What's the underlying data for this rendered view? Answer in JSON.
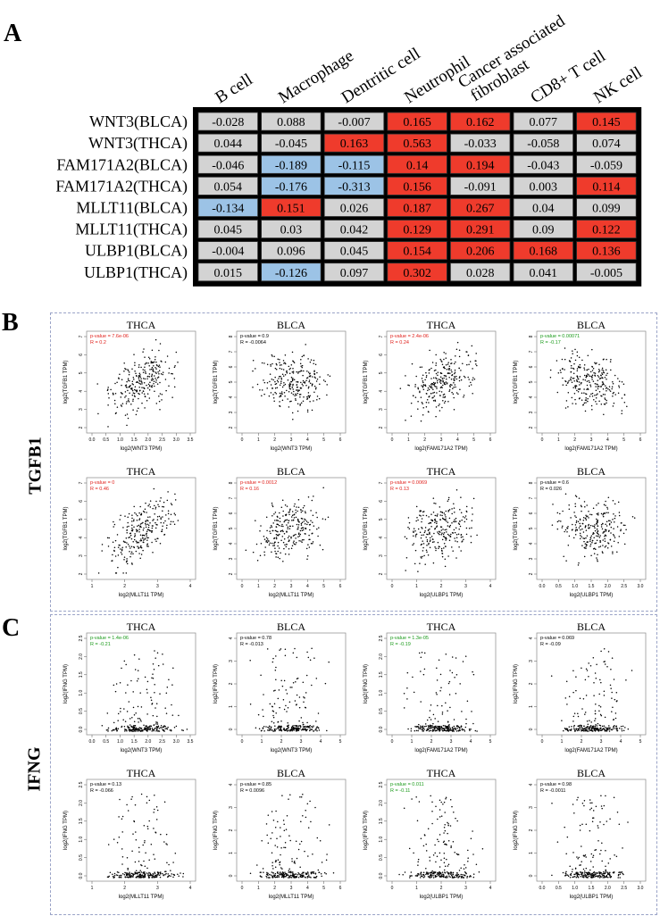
{
  "panels": {
    "a": "A",
    "b": "B",
    "c": "C"
  },
  "heatmap": {
    "columns": [
      "B cell",
      "Macrophage",
      "Dentritic cell",
      "Neutrophil",
      "Cancer associated\nfibroblast",
      "CD8+ T cell",
      "NK cell"
    ],
    "rows": [
      {
        "label": "WNT3(BLCA)",
        "values": [
          "-0.028",
          "0.088",
          "-0.007",
          "0.165",
          "0.162",
          "0.077",
          "0.145"
        ],
        "colors": [
          "g",
          "g",
          "g",
          "r",
          "r",
          "g",
          "r"
        ]
      },
      {
        "label": "WNT3(THCA)",
        "values": [
          "0.044",
          "-0.045",
          "0.163",
          "0.563",
          "-0.033",
          "-0.058",
          "0.074"
        ],
        "colors": [
          "g",
          "g",
          "r",
          "r",
          "g",
          "g",
          "g"
        ]
      },
      {
        "label": "FAM171A2(BLCA)",
        "values": [
          "-0.046",
          "-0.189",
          "-0.115",
          "0.14",
          "0.194",
          "-0.043",
          "-0.059"
        ],
        "colors": [
          "g",
          "b",
          "b",
          "r",
          "r",
          "g",
          "g"
        ]
      },
      {
        "label": "FAM171A2(THCA)",
        "values": [
          "0.054",
          "-0.176",
          "-0.313",
          "0.156",
          "-0.091",
          "0.003",
          "0.114"
        ],
        "colors": [
          "g",
          "b",
          "b",
          "r",
          "g",
          "g",
          "r"
        ]
      },
      {
        "label": "MLLT11(BLCA)",
        "values": [
          "-0.134",
          "0.151",
          "0.026",
          "0.187",
          "0.267",
          "0.04",
          "0.099"
        ],
        "colors": [
          "b",
          "r",
          "g",
          "r",
          "r",
          "g",
          "g"
        ]
      },
      {
        "label": "MLLT11(THCA)",
        "values": [
          "0.045",
          "0.03",
          "0.042",
          "0.129",
          "0.291",
          "0.09",
          "0.122"
        ],
        "colors": [
          "g",
          "g",
          "g",
          "r",
          "r",
          "g",
          "r"
        ]
      },
      {
        "label": "ULBP1(BLCA)",
        "values": [
          "-0.004",
          "0.096",
          "0.045",
          "0.154",
          "0.206",
          "0.168",
          "0.136"
        ],
        "colors": [
          "g",
          "g",
          "g",
          "r",
          "r",
          "r",
          "r"
        ]
      },
      {
        "label": "ULBP1(THCA)",
        "values": [
          "0.015",
          "-0.126",
          "0.097",
          "0.302",
          "0.028",
          "0.041",
          "-0.005"
        ],
        "colors": [
          "g",
          "b",
          "g",
          "r",
          "g",
          "g",
          "g"
        ]
      }
    ],
    "palette": {
      "g": "#d3d3d3",
      "r": "#ef3b2c",
      "b": "#9cc3e6"
    }
  },
  "sections": [
    {
      "label": "TGFB1",
      "yaxis": "log2(TGFB1 TPM)",
      "plots": [
        {
          "title": "THCA",
          "xlabel": "log2(WNT3 TPM)",
          "p": "p-value = 7.6e-06",
          "r": "R = 0.2",
          "color": "#e0201b",
          "xticks": [
            "0.0",
            "0.5",
            "1.0",
            "1.5",
            "2.0",
            "2.5",
            "3.0",
            "3.5"
          ],
          "yticks": [
            "2",
            "3",
            "4",
            "5",
            "6",
            "7"
          ],
          "trend": 0.45,
          "seed": 11
        },
        {
          "title": "BLCA",
          "xlabel": "log2(WNT3 TPM)",
          "p": "p-value = 0.9",
          "r": "R = -0.0064",
          "color": "#000000",
          "xticks": [
            "0",
            "1",
            "2",
            "3",
            "4",
            "5",
            "6"
          ],
          "yticks": [
            "2",
            "3",
            "4",
            "5",
            "6",
            "7",
            "8"
          ],
          "trend": 0.0,
          "seed": 12
        },
        {
          "title": "THCA",
          "xlabel": "log2(FAM171A2 TPM)",
          "p": "p-value = 2.4e-06",
          "r": "R = 0.24",
          "color": "#e0201b",
          "xticks": [
            "0",
            "1",
            "2",
            "3",
            "4",
            "5",
            "6"
          ],
          "yticks": [
            "2",
            "3",
            "4",
            "5",
            "6",
            "7"
          ],
          "trend": 0.5,
          "seed": 13
        },
        {
          "title": "BLCA",
          "xlabel": "log2(FAM171A2 TPM)",
          "p": "p-value = 0.00071",
          "r": "R = -0.17",
          "color": "#1a9a1a",
          "xticks": [
            "0",
            "1",
            "2",
            "3",
            "4",
            "5",
            "6"
          ],
          "yticks": [
            "2",
            "3",
            "4",
            "5",
            "6",
            "7",
            "8"
          ],
          "trend": -0.4,
          "seed": 14
        },
        {
          "title": "THCA",
          "xlabel": "log2(MLLT11 TPM)",
          "p": "p-value = 0",
          "r": "R = 0.46",
          "color": "#e0201b",
          "xticks": [
            "1",
            "2",
            "3",
            "4"
          ],
          "yticks": [
            "2",
            "3",
            "4",
            "5",
            "6",
            "7"
          ],
          "trend": 0.8,
          "seed": 15
        },
        {
          "title": "BLCA",
          "xlabel": "log2(MLLT11 TPM)",
          "p": "p-value = 0.0012",
          "r": "R = 0.16",
          "color": "#e0201b",
          "xticks": [
            "0",
            "1",
            "2",
            "3",
            "4",
            "5",
            "6"
          ],
          "yticks": [
            "2",
            "3",
            "4",
            "5",
            "6",
            "7",
            "8"
          ],
          "trend": 0.35,
          "seed": 16
        },
        {
          "title": "THCA",
          "xlabel": "log2(ULBP1 TPM)",
          "p": "p-value = 0.0069",
          "r": "R = 0.13",
          "color": "#e0201b",
          "xticks": [
            "0",
            "1",
            "2",
            "3",
            "4"
          ],
          "yticks": [
            "2",
            "3",
            "4",
            "5",
            "6",
            "7"
          ],
          "trend": 0.25,
          "seed": 17
        },
        {
          "title": "BLCA",
          "xlabel": "log2(ULBP1 TPM)",
          "p": "p-value = 0.6",
          "r": "R = 0.026",
          "color": "#000000",
          "xticks": [
            "0.0",
            "0.5",
            "1.0",
            "1.5",
            "2.0",
            "2.5",
            "3.0"
          ],
          "yticks": [
            "2",
            "3",
            "4",
            "5",
            "6",
            "7",
            "8"
          ],
          "trend": 0.0,
          "seed": 18
        }
      ]
    },
    {
      "label": "IFNG",
      "yaxis": "log2(IFNG TPM)",
      "plots": [
        {
          "title": "THCA",
          "xlabel": "log2(WNT3 TPM)",
          "p": "p-value = 1.4e-06",
          "r": "R = -0.21",
          "color": "#1a9a1a",
          "xticks": [
            "0.0",
            "0.5",
            "1.0",
            "1.5",
            "2.0",
            "2.5",
            "3.0",
            "3.5"
          ],
          "yticks": [
            "0.0",
            "0.5",
            "1.0",
            "1.5",
            "2.0",
            "2.5"
          ],
          "trend": -0.3,
          "seed": 21
        },
        {
          "title": "BLCA",
          "xlabel": "log2(WNT3 TPM)",
          "p": "p-value = 0.78",
          "r": "R = -0.013",
          "color": "#000000",
          "xticks": [
            "0",
            "1",
            "2",
            "3",
            "4",
            "5"
          ],
          "yticks": [
            "0",
            "1",
            "2",
            "3",
            "4"
          ],
          "trend": 0.0,
          "seed": 22
        },
        {
          "title": "THCA",
          "xlabel": "log2(FAM171A2 TPM)",
          "p": "p-value = 1.3e-05",
          "r": "R = -0.19",
          "color": "#1a9a1a",
          "xticks": [
            "0",
            "1",
            "2",
            "3",
            "4",
            "5"
          ],
          "yticks": [
            "0.0",
            "0.5",
            "1.0",
            "1.5",
            "2.0",
            "2.5"
          ],
          "trend": -0.3,
          "seed": 23
        },
        {
          "title": "BLCA",
          "xlabel": "log2(FAM171A2 TPM)",
          "p": "p-value = 0.069",
          "r": "R = -0.09",
          "color": "#000000",
          "xticks": [
            "0",
            "1",
            "2",
            "3",
            "4",
            "5"
          ],
          "yticks": [
            "0",
            "1",
            "2",
            "3",
            "4"
          ],
          "trend": -0.15,
          "seed": 24
        },
        {
          "title": "THCA",
          "xlabel": "log2(MLLT11 TPM)",
          "p": "p-value = 0.13",
          "r": "R = -0.066",
          "color": "#000000",
          "xticks": [
            "1",
            "2",
            "3",
            "4"
          ],
          "yticks": [
            "0.0",
            "0.5",
            "1.0",
            "1.5",
            "2.0",
            "2.5"
          ],
          "trend": -0.1,
          "seed": 25
        },
        {
          "title": "BLCA",
          "xlabel": "log2(MLLT11 TPM)",
          "p": "p-value = 0.85",
          "r": "R = 0.0096",
          "color": "#000000",
          "xticks": [
            "0",
            "1",
            "2",
            "3",
            "4",
            "5",
            "6"
          ],
          "yticks": [
            "0",
            "1",
            "2",
            "3",
            "4"
          ],
          "trend": 0.0,
          "seed": 26
        },
        {
          "title": "THCA",
          "xlabel": "log2(ULBP1 TPM)",
          "p": "p-value = 0.011",
          "r": "R = -0.11",
          "color": "#1a9a1a",
          "xticks": [
            "0",
            "1",
            "2",
            "3",
            "4"
          ],
          "yticks": [
            "0.0",
            "0.5",
            "1.0",
            "1.5",
            "2.0",
            "2.5"
          ],
          "trend": -0.2,
          "seed": 27
        },
        {
          "title": "BLCA",
          "xlabel": "log2(ULBP1 TPM)",
          "p": "p-value = 0.98",
          "r": "R = -0.0011",
          "color": "#000000",
          "xticks": [
            "0.0",
            "0.5",
            "1.0",
            "1.5",
            "2.0",
            "2.5",
            "3.0"
          ],
          "yticks": [
            "0",
            "1",
            "2",
            "3",
            "4"
          ],
          "trend": 0.0,
          "seed": 28
        }
      ]
    }
  ]
}
